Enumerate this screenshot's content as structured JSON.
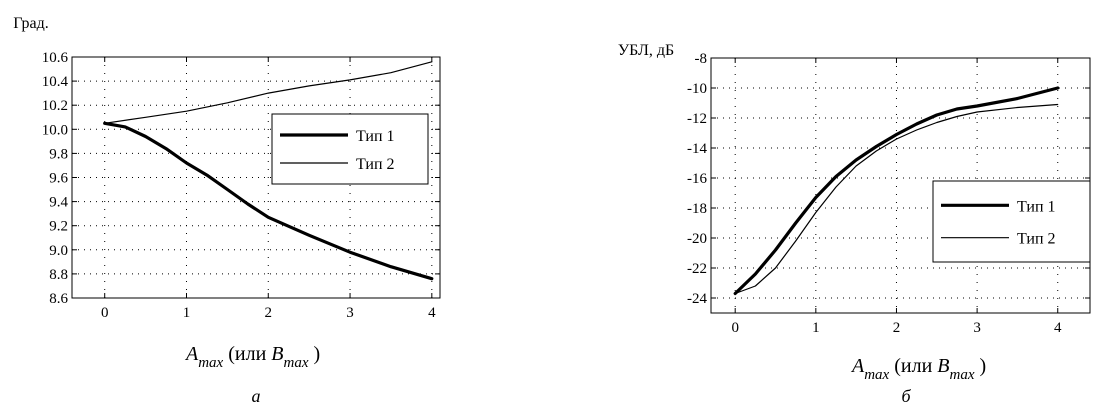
{
  "chart_data": [
    {
      "type": "line",
      "ylabel": "Град.",
      "xlabel": {
        "var1": "A",
        "sub1": "max",
        "middle": " (или ",
        "var2": "B",
        "sub2": "max",
        "end": " )"
      },
      "caption": "а",
      "xlim": [
        -0.4,
        4.1
      ],
      "ylim": [
        8.6,
        10.6
      ],
      "xticks": [
        0,
        1,
        2,
        3,
        4
      ],
      "xtick_labels": [
        "0",
        "1",
        "2",
        "3",
        "4"
      ],
      "yticks": [
        8.6,
        8.8,
        9.0,
        9.2,
        9.4,
        9.6,
        9.8,
        10.0,
        10.2,
        10.4,
        10.6
      ],
      "ytick_labels": [
        "8.6",
        "8.8",
        "9.0",
        "9.2",
        "9.4",
        "9.6",
        "9.8",
        "10.0",
        "10.2",
        "10.4",
        "10.6"
      ],
      "grid": true,
      "legend_position": "right",
      "series": [
        {
          "name": "Тип 1",
          "style": "thick",
          "x": [
            0,
            0.25,
            0.5,
            0.75,
            1.0,
            1.25,
            1.5,
            1.75,
            2.0,
            2.5,
            3.0,
            3.5,
            4.0
          ],
          "y": [
            10.05,
            10.02,
            9.94,
            9.84,
            9.72,
            9.62,
            9.5,
            9.38,
            9.27,
            9.12,
            8.98,
            8.86,
            8.76
          ]
        },
        {
          "name": "Тип 2",
          "style": "thin",
          "x": [
            0,
            0.5,
            1.0,
            1.5,
            2.0,
            2.5,
            3.0,
            3.5,
            4.0
          ],
          "y": [
            10.05,
            10.1,
            10.15,
            10.22,
            10.3,
            10.36,
            10.41,
            10.47,
            10.56
          ]
        }
      ]
    },
    {
      "type": "line",
      "ylabel": "УБЛ, дБ",
      "xlabel": {
        "var1": "A",
        "sub1": "max",
        "middle": " (или ",
        "var2": "B",
        "sub2": "max",
        "end": " )"
      },
      "caption": "б",
      "xlim": [
        -0.3,
        4.4
      ],
      "ylim": [
        -25,
        -8
      ],
      "xticks": [
        0,
        1,
        2,
        3,
        4
      ],
      "xtick_labels": [
        "0",
        "1",
        "2",
        "3",
        "4"
      ],
      "yticks": [
        -24,
        -22,
        -20,
        -18,
        -16,
        -14,
        -12,
        -10,
        -8
      ],
      "ytick_labels": [
        "-24",
        "-22",
        "-20",
        "-18",
        "-16",
        "-14",
        "-12",
        "-10",
        "-8"
      ],
      "grid": true,
      "legend_position": "lower-right",
      "series": [
        {
          "name": "Тип 1",
          "style": "thick",
          "x": [
            0,
            0.25,
            0.5,
            0.75,
            1.0,
            1.25,
            1.5,
            1.75,
            2.0,
            2.25,
            2.5,
            2.75,
            3.0,
            3.5,
            4.0
          ],
          "y": [
            -23.7,
            -22.4,
            -20.8,
            -19.0,
            -17.3,
            -15.9,
            -14.8,
            -13.9,
            -13.1,
            -12.4,
            -11.8,
            -11.4,
            -11.2,
            -10.7,
            -10.0
          ]
        },
        {
          "name": "Тип 2",
          "style": "thin",
          "x": [
            0,
            0.25,
            0.5,
            0.75,
            1.0,
            1.25,
            1.5,
            1.75,
            2.0,
            2.25,
            2.5,
            2.75,
            3.0,
            3.5,
            4.0
          ],
          "y": [
            -23.7,
            -23.2,
            -22.0,
            -20.2,
            -18.3,
            -16.6,
            -15.2,
            -14.2,
            -13.4,
            -12.8,
            -12.3,
            -11.9,
            -11.6,
            -11.3,
            -11.1
          ]
        }
      ]
    }
  ]
}
